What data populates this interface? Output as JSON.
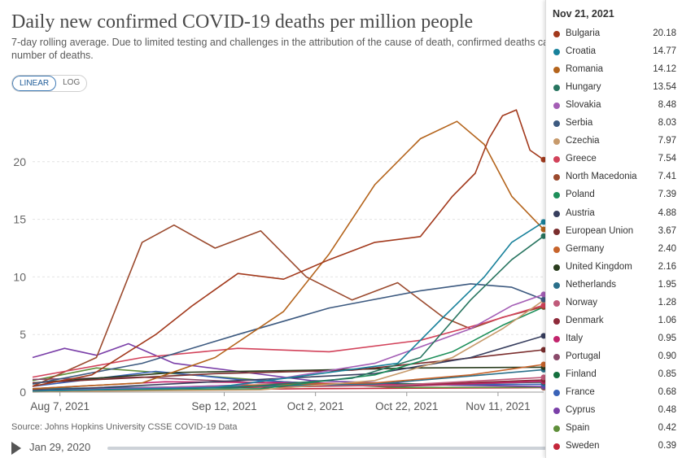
{
  "header": {
    "title": "Daily new confirmed COVID-19 deaths per million people",
    "subtitle": "7-day rolling average. Due to limited testing and challenges in the attribution of the cause of death, confirmed deaths ca number of deaths."
  },
  "scale_toggle": {
    "linear": "LINEAR",
    "log": "LOG"
  },
  "source": "Source: Johns Hopkins University CSSE COVID-19 Data",
  "timeline": {
    "start_date": "Jan 29, 2020"
  },
  "tooltip": {
    "date": "Nov 21, 2021",
    "rows": [
      {
        "name": "Bulgaria",
        "value": "20.18",
        "color": "#a2391c"
      },
      {
        "name": "Croatia",
        "value": "14.77",
        "color": "#18819b"
      },
      {
        "name": "Romania",
        "value": "14.12",
        "color": "#b4641c"
      },
      {
        "name": "Hungary",
        "value": "13.54",
        "color": "#287560"
      },
      {
        "name": "Slovakia",
        "value": "8.48",
        "color": "#a45eb5"
      },
      {
        "name": "Serbia",
        "value": "8.03",
        "color": "#3d5a80"
      },
      {
        "name": "Czechia",
        "value": "7.97",
        "color": "#c79a6b"
      },
      {
        "name": "Greece",
        "value": "7.54",
        "color": "#d2425a"
      },
      {
        "name": "North Macedonia",
        "value": "7.41",
        "color": "#9b4a2e"
      },
      {
        "name": "Poland",
        "value": "7.39",
        "color": "#1d8f5a"
      },
      {
        "name": "Austria",
        "value": "4.88",
        "color": "#373e5e"
      },
      {
        "name": "European Union",
        "value": "3.67",
        "color": "#7a2d2d"
      },
      {
        "name": "Germany",
        "value": "2.40",
        "color": "#c7642b"
      },
      {
        "name": "United Kingdom",
        "value": "2.16",
        "color": "#2a3d1e"
      },
      {
        "name": "Netherlands",
        "value": "1.95",
        "color": "#2a6f8a"
      },
      {
        "name": "Norway",
        "value": "1.28",
        "color": "#c05a7a"
      },
      {
        "name": "Denmark",
        "value": "1.06",
        "color": "#8e2a3a"
      },
      {
        "name": "Italy",
        "value": "0.95",
        "color": "#c2246c"
      },
      {
        "name": "Portugal",
        "value": "0.90",
        "color": "#8a4a6a"
      },
      {
        "name": "Finland",
        "value": "0.85",
        "color": "#15703e"
      },
      {
        "name": "France",
        "value": "0.68",
        "color": "#3a63b8"
      },
      {
        "name": "Cyprus",
        "value": "0.48",
        "color": "#7a3fa8"
      },
      {
        "name": "Spain",
        "value": "0.42",
        "color": "#5f8f3a"
      },
      {
        "name": "Sweden",
        "value": "0.39",
        "color": "#c4263a"
      }
    ]
  },
  "chart_data": {
    "type": "line",
    "title": "Daily new confirmed COVID-19 deaths per million people",
    "xlabel": "",
    "ylabel": "",
    "x_range": [
      "2021-08-01",
      "2021-11-21"
    ],
    "ylim": [
      0,
      25
    ],
    "y_ticks": [
      0,
      5,
      10,
      15,
      20
    ],
    "x_ticks": [
      {
        "date": "2021-08-07",
        "label": "Aug 7, 2021"
      },
      {
        "date": "2021-09-12",
        "label": "Sep 12, 2021"
      },
      {
        "date": "2021-10-02",
        "label": "Oct 2, 2021"
      },
      {
        "date": "2021-10-22",
        "label": "Oct 22, 2021"
      },
      {
        "date": "2021-11-11",
        "label": "Nov 11, 2021"
      }
    ],
    "grid": "horizontal",
    "series": [
      {
        "name": "Bulgaria",
        "color": "#a2391c",
        "points": [
          [
            "2021-08-01",
            0.5
          ],
          [
            "2021-08-14",
            1.5
          ],
          [
            "2021-08-28",
            5
          ],
          [
            "2021-09-05",
            7.5
          ],
          [
            "2021-09-15",
            10.3
          ],
          [
            "2021-09-25",
            9.8
          ],
          [
            "2021-10-05",
            11.5
          ],
          [
            "2021-10-15",
            13
          ],
          [
            "2021-10-25",
            13.5
          ],
          [
            "2021-11-01",
            17
          ],
          [
            "2021-11-06",
            19
          ],
          [
            "2021-11-09",
            22
          ],
          [
            "2021-11-12",
            24
          ],
          [
            "2021-11-15",
            24.5
          ],
          [
            "2021-11-18",
            21
          ],
          [
            "2021-11-21",
            20.18
          ]
        ]
      },
      {
        "name": "Croatia",
        "color": "#18819b",
        "points": [
          [
            "2021-08-01",
            0.1
          ],
          [
            "2021-09-10",
            0.4
          ],
          [
            "2021-10-01",
            1.5
          ],
          [
            "2021-10-20",
            2.5
          ],
          [
            "2021-10-30",
            6.5
          ],
          [
            "2021-11-08",
            10
          ],
          [
            "2021-11-14",
            13
          ],
          [
            "2021-11-21",
            14.77
          ]
        ]
      },
      {
        "name": "Romania",
        "color": "#b4641c",
        "points": [
          [
            "2021-08-01",
            0.3
          ],
          [
            "2021-08-25",
            0.8
          ],
          [
            "2021-09-10",
            3
          ],
          [
            "2021-09-25",
            7
          ],
          [
            "2021-10-05",
            12
          ],
          [
            "2021-10-15",
            18
          ],
          [
            "2021-10-25",
            22
          ],
          [
            "2021-11-02",
            23.5
          ],
          [
            "2021-11-08",
            21.5
          ],
          [
            "2021-11-14",
            17
          ],
          [
            "2021-11-21",
            14.12
          ]
        ]
      },
      {
        "name": "Hungary",
        "color": "#287560",
        "points": [
          [
            "2021-08-01",
            0.1
          ],
          [
            "2021-09-15",
            0.4
          ],
          [
            "2021-10-10",
            1.2
          ],
          [
            "2021-10-25",
            3
          ],
          [
            "2021-11-05",
            8
          ],
          [
            "2021-11-14",
            11.5
          ],
          [
            "2021-11-21",
            13.54
          ]
        ]
      },
      {
        "name": "Slovakia",
        "color": "#a45eb5",
        "points": [
          [
            "2021-08-01",
            0.1
          ],
          [
            "2021-09-15",
            0.6
          ],
          [
            "2021-10-15",
            2.5
          ],
          [
            "2021-11-05",
            5.5
          ],
          [
            "2021-11-14",
            7.5
          ],
          [
            "2021-11-21",
            8.48
          ]
        ]
      },
      {
        "name": "Serbia",
        "color": "#3d5a80",
        "points": [
          [
            "2021-08-01",
            0.7
          ],
          [
            "2021-08-25",
            2.5
          ],
          [
            "2021-09-15",
            5
          ],
          [
            "2021-10-05",
            7.3
          ],
          [
            "2021-10-25",
            8.8
          ],
          [
            "2021-11-05",
            9.4
          ],
          [
            "2021-11-14",
            9.1
          ],
          [
            "2021-11-21",
            8.03
          ]
        ]
      },
      {
        "name": "Czechia",
        "color": "#c79a6b",
        "points": [
          [
            "2021-08-01",
            0.05
          ],
          [
            "2021-09-20",
            0.2
          ],
          [
            "2021-10-15",
            1
          ],
          [
            "2021-11-01",
            3
          ],
          [
            "2021-11-12",
            5.5
          ],
          [
            "2021-11-21",
            7.97
          ]
        ]
      },
      {
        "name": "Greece",
        "color": "#d2425a",
        "points": [
          [
            "2021-08-01",
            1.3
          ],
          [
            "2021-08-25",
            3
          ],
          [
            "2021-09-15",
            3.8
          ],
          [
            "2021-10-05",
            3.5
          ],
          [
            "2021-10-25",
            4.5
          ],
          [
            "2021-11-08",
            6
          ],
          [
            "2021-11-21",
            7.54
          ]
        ]
      },
      {
        "name": "North Macedonia",
        "color": "#9b4a2e",
        "points": [
          [
            "2021-08-01",
            0.5
          ],
          [
            "2021-08-15",
            3
          ],
          [
            "2021-08-25",
            13
          ],
          [
            "2021-09-01",
            14.5
          ],
          [
            "2021-09-10",
            12.5
          ],
          [
            "2021-09-20",
            14
          ],
          [
            "2021-09-30",
            10
          ],
          [
            "2021-10-10",
            8
          ],
          [
            "2021-10-20",
            9.5
          ],
          [
            "2021-10-30",
            6.5
          ],
          [
            "2021-11-05",
            5.5
          ],
          [
            "2021-11-12",
            6.5
          ],
          [
            "2021-11-21",
            7.41
          ]
        ]
      },
      {
        "name": "Poland",
        "color": "#1d8f5a",
        "points": [
          [
            "2021-08-01",
            0.05
          ],
          [
            "2021-09-20",
            0.3
          ],
          [
            "2021-10-15",
            1.5
          ],
          [
            "2021-11-01",
            3.5
          ],
          [
            "2021-11-12",
            5.8
          ],
          [
            "2021-11-21",
            7.39
          ]
        ]
      },
      {
        "name": "Austria",
        "color": "#373e5e",
        "points": [
          [
            "2021-08-01",
            0.1
          ],
          [
            "2021-09-15",
            1
          ],
          [
            "2021-10-15",
            1.6
          ],
          [
            "2021-11-05",
            3
          ],
          [
            "2021-11-21",
            4.88
          ]
        ]
      },
      {
        "name": "European Union",
        "color": "#7a2d2d",
        "points": [
          [
            "2021-08-01",
            0.8
          ],
          [
            "2021-09-10",
            1.6
          ],
          [
            "2021-10-10",
            1.9
          ],
          [
            "2021-11-01",
            2.8
          ],
          [
            "2021-11-21",
            3.67
          ]
        ]
      },
      {
        "name": "Germany",
        "color": "#c7642b",
        "points": [
          [
            "2021-08-01",
            0.05
          ],
          [
            "2021-09-15",
            0.6
          ],
          [
            "2021-10-15",
            0.8
          ],
          [
            "2021-11-05",
            1.5
          ],
          [
            "2021-11-21",
            2.4
          ]
        ]
      },
      {
        "name": "United Kingdom",
        "color": "#2a3d1e",
        "points": [
          [
            "2021-08-01",
            0.8
          ],
          [
            "2021-09-01",
            1.7
          ],
          [
            "2021-10-01",
            1.9
          ],
          [
            "2021-10-25",
            2.1
          ],
          [
            "2021-11-21",
            2.16
          ]
        ]
      },
      {
        "name": "Netherlands",
        "color": "#2a6f8a",
        "points": [
          [
            "2021-08-01",
            0.3
          ],
          [
            "2021-09-15",
            0.5
          ],
          [
            "2021-10-15",
            0.7
          ],
          [
            "2021-11-05",
            1.4
          ],
          [
            "2021-11-21",
            1.95
          ]
        ]
      },
      {
        "name": "Norway",
        "color": "#c05a7a",
        "points": [
          [
            "2021-08-01",
            0.05
          ],
          [
            "2021-09-20",
            0.5
          ],
          [
            "2021-10-20",
            0.6
          ],
          [
            "2021-11-21",
            1.28
          ]
        ]
      },
      {
        "name": "Denmark",
        "color": "#8e2a3a",
        "points": [
          [
            "2021-08-01",
            0.2
          ],
          [
            "2021-09-15",
            0.4
          ],
          [
            "2021-10-20",
            0.6
          ],
          [
            "2021-11-21",
            1.06
          ]
        ]
      },
      {
        "name": "Italy",
        "color": "#c2246c",
        "points": [
          [
            "2021-08-01",
            0.3
          ],
          [
            "2021-08-30",
            0.9
          ],
          [
            "2021-10-01",
            0.8
          ],
          [
            "2021-10-25",
            0.6
          ],
          [
            "2021-11-21",
            0.95
          ]
        ]
      },
      {
        "name": "Portugal",
        "color": "#8a4a6a",
        "points": [
          [
            "2021-08-01",
            1.1
          ],
          [
            "2021-08-25",
            1.3
          ],
          [
            "2021-09-20",
            0.8
          ],
          [
            "2021-10-20",
            0.5
          ],
          [
            "2021-11-21",
            0.9
          ]
        ]
      },
      {
        "name": "Finland",
        "color": "#15703e",
        "points": [
          [
            "2021-08-01",
            0.1
          ],
          [
            "2021-09-15",
            0.5
          ],
          [
            "2021-10-20",
            0.7
          ],
          [
            "2021-11-21",
            0.85
          ]
        ]
      },
      {
        "name": "France",
        "color": "#3a63b8",
        "points": [
          [
            "2021-08-01",
            0.5
          ],
          [
            "2021-08-28",
            1.8
          ],
          [
            "2021-09-15",
            1.1
          ],
          [
            "2021-10-10",
            0.6
          ],
          [
            "2021-11-21",
            0.68
          ]
        ]
      },
      {
        "name": "Cyprus",
        "color": "#7a3fa8",
        "points": [
          [
            "2021-08-01",
            3
          ],
          [
            "2021-08-08",
            3.8
          ],
          [
            "2021-08-15",
            3.2
          ],
          [
            "2021-08-22",
            4.2
          ],
          [
            "2021-09-01",
            2.5
          ],
          [
            "2021-09-15",
            1.8
          ],
          [
            "2021-10-01",
            1
          ],
          [
            "2021-11-01",
            0.6
          ],
          [
            "2021-11-21",
            0.48
          ]
        ]
      },
      {
        "name": "Spain",
        "color": "#5f8f3a",
        "points": [
          [
            "2021-08-01",
            1
          ],
          [
            "2021-08-15",
            2.1
          ],
          [
            "2021-09-01",
            1.6
          ],
          [
            "2021-09-25",
            0.9
          ],
          [
            "2021-10-20",
            0.4
          ],
          [
            "2021-11-21",
            0.42
          ]
        ]
      },
      {
        "name": "Sweden",
        "color": "#c4263a",
        "points": [
          [
            "2021-08-01",
            0.05
          ],
          [
            "2021-09-01",
            0.2
          ],
          [
            "2021-10-01",
            0.3
          ],
          [
            "2021-11-21",
            0.39
          ]
        ]
      }
    ]
  }
}
